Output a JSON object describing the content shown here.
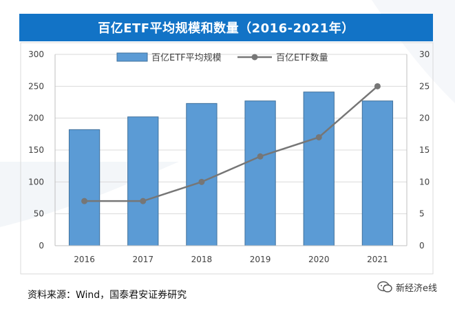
{
  "header": {
    "title": "百亿ETF平均规模和数量（2016-2021年）"
  },
  "footer": {
    "source": "资料来源：Wind，国泰君安证券研究"
  },
  "watermark": {
    "icon": "wechat-icon",
    "text": "新经济e线"
  },
  "colors": {
    "bar": "#5b9bd5",
    "bar_edge": "#41719c",
    "line": "#767676",
    "title_bg": "#1273c6"
  },
  "chart_data": {
    "type": "bar",
    "title": "百亿ETF平均规模和数量（2016-2021年）",
    "categories": [
      "2016",
      "2017",
      "2018",
      "2019",
      "2020",
      "2021"
    ],
    "series": [
      {
        "name": "百亿ETF平均规模",
        "type": "bar",
        "axis": "left",
        "values": [
          182,
          202,
          223,
          227,
          241,
          227
        ]
      },
      {
        "name": "百亿ETF数量",
        "type": "line",
        "axis": "right",
        "values": [
          7,
          7,
          10,
          14,
          17,
          25
        ]
      }
    ],
    "y_left": {
      "min": 0,
      "max": 300,
      "ticks": [
        "0",
        "50",
        "100",
        "150",
        "200",
        "250",
        "300"
      ]
    },
    "y_right": {
      "min": 0,
      "max": 30,
      "ticks": [
        "0",
        "5",
        "10",
        "15",
        "20",
        "25",
        "30"
      ]
    },
    "grid": true,
    "legend": "top"
  }
}
